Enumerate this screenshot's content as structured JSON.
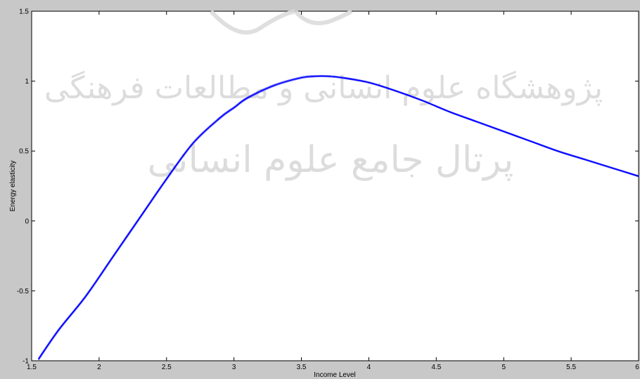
{
  "chart_data": {
    "type": "line",
    "title": "",
    "xlabel": "Income Level",
    "ylabel": "Energy elasticity",
    "xlim": [
      1.5,
      6
    ],
    "ylim": [
      -1,
      1.5
    ],
    "xticks": [
      1.5,
      2,
      2.5,
      3,
      3.5,
      4,
      4.5,
      5,
      5.5,
      6
    ],
    "yticks": [
      -1,
      -0.5,
      0,
      0.5,
      1,
      1.5
    ],
    "xtick_labels": [
      "1.5",
      "2",
      "2.5",
      "3",
      "3.5",
      "4",
      "4.5",
      "5",
      "5.5",
      "6"
    ],
    "ytick_labels": [
      "-1",
      "-0.5",
      "0",
      "0.5",
      "1",
      "1.5"
    ],
    "grid": false,
    "legend": "none",
    "series": [
      {
        "color": "#0000ff",
        "x": [
          1.55,
          1.7,
          1.9,
          2.1,
          2.3,
          2.5,
          2.7,
          2.9,
          3.0,
          3.1,
          3.3,
          3.5,
          3.6,
          3.7,
          3.8,
          4.0,
          4.2,
          4.4,
          4.6,
          4.8,
          5.0,
          5.2,
          5.4,
          5.6,
          5.8,
          6.0
        ],
        "y": [
          -0.99,
          -0.78,
          -0.54,
          -0.26,
          0.02,
          0.3,
          0.56,
          0.74,
          0.81,
          0.88,
          0.97,
          1.025,
          1.035,
          1.035,
          1.025,
          0.99,
          0.93,
          0.86,
          0.78,
          0.71,
          0.64,
          0.57,
          0.5,
          0.44,
          0.38,
          0.32
        ]
      }
    ]
  },
  "watermark": {
    "line1": "پژوهشگاه علوم انسانی و مطالعات فرهنگی",
    "line2": "پرتال جامع علوم انسانی"
  }
}
